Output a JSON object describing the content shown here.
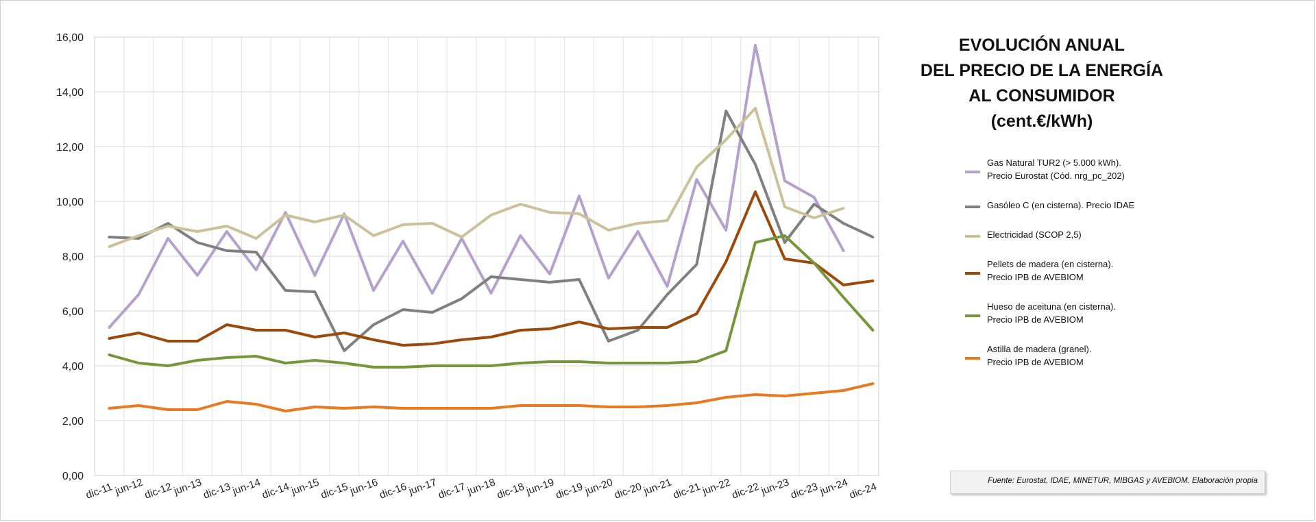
{
  "chart_data": {
    "type": "line",
    "title_lines": [
      "EVOLUCIÓN ANUAL",
      "DEL PRECIO DE LA ENERGÍA",
      "AL CONSUMIDOR",
      "(cent.€/kWh)"
    ],
    "categories": [
      "dic-11",
      "jun-12",
      "dic-12",
      "jun-13",
      "dic-13",
      "jun-14",
      "dic-14",
      "jun-15",
      "dic-15",
      "jun-16",
      "dic-16",
      "jun-17",
      "dic-17",
      "jun-18",
      "dic-18",
      "jun-19",
      "dic-19",
      "jun-20",
      "dic-20",
      "jun-21",
      "dic-21",
      "jun-22",
      "dic-22",
      "jun-23",
      "dic-23",
      "jun-24",
      "dic-24"
    ],
    "y_ticks": [
      "0,00",
      "2,00",
      "4,00",
      "6,00",
      "8,00",
      "10,00",
      "12,00",
      "14,00",
      "16,00"
    ],
    "ylim": [
      0,
      16
    ],
    "grid": true,
    "legend_position": "right",
    "series": [
      {
        "name_lines": [
          "Gas Natural TUR2 (> 5.000 kWh).",
          "Precio Eurostat (Cód. nrg_pc_202)"
        ],
        "color": "#b3a2cc",
        "values": [
          5.4,
          6.6,
          8.65,
          7.3,
          8.9,
          7.5,
          9.6,
          7.3,
          9.55,
          6.75,
          8.55,
          6.65,
          8.65,
          6.65,
          8.75,
          7.35,
          10.2,
          7.2,
          8.9,
          6.9,
          10.8,
          8.95,
          15.7,
          10.75,
          10.15,
          8.2,
          null
        ]
      },
      {
        "name_lines": [
          "Gasóleo C (en cisterna). Precio IDAE"
        ],
        "color": "#808080",
        "values": [
          8.7,
          8.65,
          9.2,
          8.5,
          8.2,
          8.15,
          6.75,
          6.7,
          4.55,
          5.5,
          6.05,
          5.95,
          6.45,
          7.25,
          7.15,
          7.05,
          7.15,
          4.9,
          5.3,
          6.6,
          7.7,
          13.3,
          11.35,
          8.5,
          9.9,
          9.2,
          8.7
        ]
      },
      {
        "name_lines": [
          "Electricidad (SCOP 2,5)"
        ],
        "color": "#c9c29a",
        "values": [
          8.35,
          8.75,
          9.1,
          8.9,
          9.1,
          8.65,
          9.5,
          9.25,
          9.5,
          8.75,
          9.15,
          9.2,
          8.7,
          9.5,
          9.9,
          9.6,
          9.55,
          8.95,
          9.2,
          9.3,
          11.25,
          12.25,
          13.4,
          9.8,
          9.4,
          9.75,
          null
        ]
      },
      {
        "name_lines": [
          "Pellets de madera (en cisterna).",
          "Precio IPB de AVEBIOM"
        ],
        "color": "#9c4a0c",
        "values": [
          5.0,
          5.2,
          4.9,
          4.9,
          5.5,
          5.3,
          5.3,
          5.05,
          5.2,
          4.95,
          4.75,
          4.8,
          4.95,
          5.05,
          5.3,
          5.35,
          5.6,
          5.35,
          5.4,
          5.4,
          5.9,
          7.8,
          10.35,
          7.9,
          7.75,
          6.95,
          7.1
        ]
      },
      {
        "name_lines": [
          "Hueso de aceituna (en cisterna).",
          "Precio IPB de AVEBIOM"
        ],
        "color": "#76963b",
        "values": [
          4.4,
          4.1,
          4.0,
          4.2,
          4.3,
          4.35,
          4.1,
          4.2,
          4.1,
          3.95,
          3.95,
          4.0,
          4.0,
          4.0,
          4.1,
          4.15,
          4.15,
          4.1,
          4.1,
          4.1,
          4.15,
          4.55,
          8.5,
          8.75,
          7.75,
          6.5,
          5.3
        ]
      },
      {
        "name_lines": [
          "Astilla de madera (granel).",
          "Precio IPB de AVEBIOM"
        ],
        "color": "#e87a22",
        "values": [
          2.45,
          2.55,
          2.4,
          2.4,
          2.7,
          2.6,
          2.35,
          2.5,
          2.45,
          2.5,
          2.45,
          2.45,
          2.45,
          2.45,
          2.55,
          2.55,
          2.55,
          2.5,
          2.5,
          2.55,
          2.65,
          2.85,
          2.95,
          2.9,
          3.0,
          3.1,
          3.35
        ]
      }
    ],
    "source_note": "Fuente: Eurostat, IDAE, MINETUR, MIBGAS y AVEBIOM. Elaboración propia"
  }
}
